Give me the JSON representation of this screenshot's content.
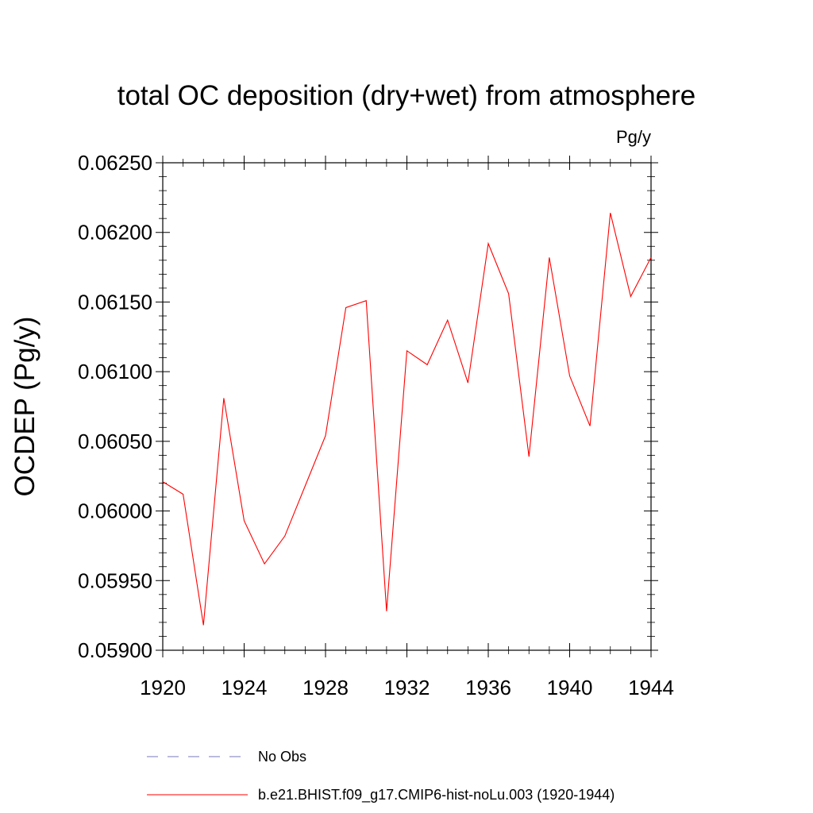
{
  "chart_data": {
    "type": "line",
    "title": "total OC deposition (dry+wet) from atmosphere",
    "units": "Pg/y",
    "ylabel": "OCDEP  (Pg/y)",
    "xlabel": "",
    "xlim": [
      1920,
      1944
    ],
    "ylim": [
      0.059,
      0.0625
    ],
    "xticks": [
      "1920",
      "1924",
      "1928",
      "1932",
      "1936",
      "1940",
      "1944"
    ],
    "yticks": [
      "0.05900",
      "0.05950",
      "0.06000",
      "0.06050",
      "0.06100",
      "0.06150",
      "0.06200",
      "0.06250"
    ],
    "grid": false,
    "legend_position": "bottom",
    "series": [
      {
        "name": "b.e21.BHIST.f09_g17.CMIP6-hist-noLu.003 (1920-1944)",
        "color": "#ff0000",
        "style": "solid",
        "x": [
          1920,
          1921,
          1922,
          1923,
          1924,
          1925,
          1926,
          1927,
          1928,
          1929,
          1930,
          1931,
          1932,
          1933,
          1934,
          1935,
          1936,
          1937,
          1938,
          1939,
          1940,
          1941,
          1942,
          1943,
          1944
        ],
        "y": [
          0.06021,
          0.06012,
          0.05918,
          0.06081,
          0.05993,
          0.05962,
          0.05982,
          0.06018,
          0.06054,
          0.06146,
          0.06151,
          0.05928,
          0.06115,
          0.06105,
          0.06137,
          0.06092,
          0.06192,
          0.06156,
          0.06039,
          0.06182,
          0.06097,
          0.06061,
          0.06214,
          0.06154,
          0.06182
        ]
      }
    ],
    "legend": [
      {
        "label": "No Obs",
        "color": "#7777bb",
        "style": "dashed"
      },
      {
        "label": "b.e21.BHIST.f09_g17.CMIP6-hist-noLu.003 (1920-1944)",
        "color": "#ff0000",
        "style": "solid"
      }
    ]
  }
}
